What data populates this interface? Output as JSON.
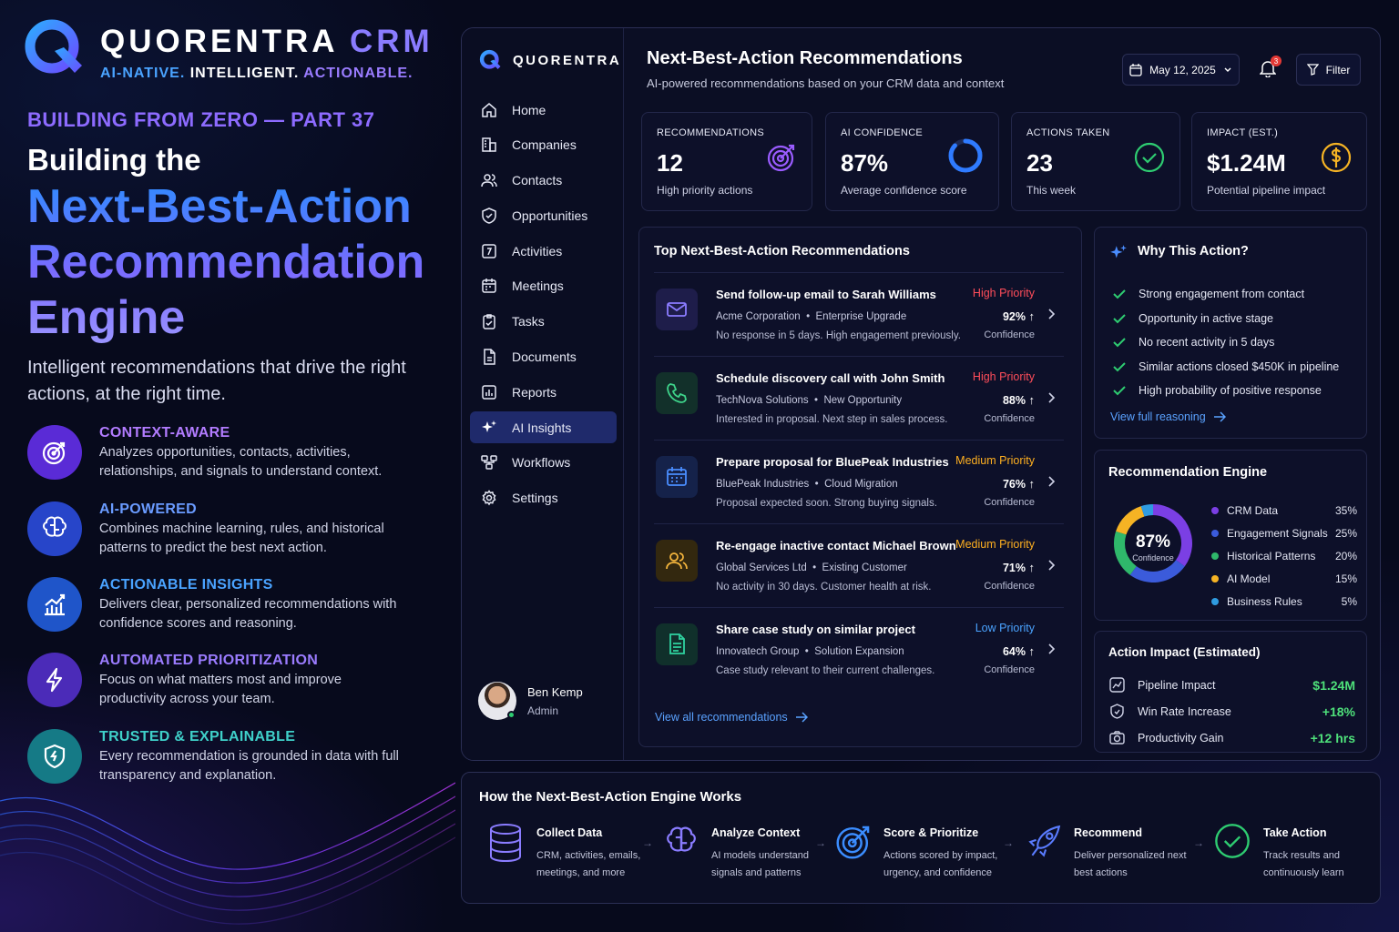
{
  "brand": {
    "name": "QUORENTRA",
    "product": "CRM",
    "tagline": [
      "AI-NATIVE.",
      "INTELLIGENT.",
      "ACTIONABLE."
    ]
  },
  "hero": {
    "series": "BUILDING FROM ZERO — PART 37",
    "title_lead": "Building the",
    "title_main": "Next-Best-Action Recommendation Engine",
    "lead": "Intelligent recommendations that drive the right actions, at the right time."
  },
  "features": [
    {
      "icon": "target-icon",
      "title": "CONTEXT-AWARE",
      "desc": "Analyzes opportunities, contacts, activities, relationships, and signals to understand context.",
      "color": "#a46bff"
    },
    {
      "icon": "brain-icon",
      "title": "AI-POWERED",
      "desc": "Combines machine learning, rules, and historical patterns to predict the best next action.",
      "color": "#5b8cff"
    },
    {
      "icon": "chart-growth-icon",
      "title": "ACTIONABLE INSIGHTS",
      "desc": "Delivers clear, personalized recommendations with confidence scores and reasoning.",
      "color": "#4aa3ff"
    },
    {
      "icon": "lightning-icon",
      "title": "AUTOMATED PRIORITIZATION",
      "desc": "Focus on what matters most and improve productivity across your team.",
      "color": "#8d6bff"
    },
    {
      "icon": "shield-icon",
      "title": "TRUSTED & EXPLAINABLE",
      "desc": "Every recommendation is grounded in data with full transparency and explanation.",
      "color": "#3fc3c9"
    }
  ],
  "sidebar": {
    "logo_text": "QUORENTRA",
    "items": [
      {
        "label": "Home",
        "icon": "home-icon"
      },
      {
        "label": "Companies",
        "icon": "building-icon"
      },
      {
        "label": "Contacts",
        "icon": "users-icon"
      },
      {
        "label": "Opportunities",
        "icon": "shield-check-icon"
      },
      {
        "label": "Activities",
        "icon": "activity-icon"
      },
      {
        "label": "Meetings",
        "icon": "calendar-icon"
      },
      {
        "label": "Tasks",
        "icon": "clipboard-icon"
      },
      {
        "label": "Documents",
        "icon": "document-icon"
      },
      {
        "label": "Reports",
        "icon": "report-icon"
      },
      {
        "label": "AI Insights",
        "icon": "sparkle-icon",
        "active": true
      },
      {
        "label": "Workflows",
        "icon": "workflow-icon"
      },
      {
        "label": "Settings",
        "icon": "gear-icon"
      }
    ],
    "user": {
      "name": "Ben Kemp",
      "role": "Admin"
    }
  },
  "header": {
    "title": "Next-Best-Action Recommendations",
    "subtitle": "AI-powered recommendations based on your CRM data and context",
    "date": "May 12, 2025",
    "notifications": "3",
    "filter_label": "Filter"
  },
  "kpis": [
    {
      "label": "RECOMMENDATIONS",
      "value": "12",
      "sub": "High priority actions",
      "icon": "target-icon"
    },
    {
      "label": "AI CONFIDENCE",
      "value": "87%",
      "sub": "Average confidence score",
      "icon": "progress-ring-icon",
      "progress": 0.87
    },
    {
      "label": "ACTIONS TAKEN",
      "value": "23",
      "sub": "This week",
      "icon": "check-circle-icon"
    },
    {
      "label": "IMPACT (EST.)",
      "value": "$1.24M",
      "sub": "Potential pipeline impact",
      "icon": "dollar-icon"
    }
  ],
  "recommendations": {
    "title": "Top Next-Best-Action Recommendations",
    "confidence_label": "Confidence",
    "items": [
      {
        "icon": "mail-icon",
        "title": "Send follow-up email to Sarah Williams",
        "company": "Acme Corporation",
        "deal": "Enterprise Upgrade",
        "note": "No response in 5 days. High engagement previously.",
        "priority": "High Priority",
        "priority_color": "#ff4d5a",
        "confidence": "92%",
        "icon_color": "#8b7cff",
        "icon_bg": "#1e1d4a"
      },
      {
        "icon": "phone-icon",
        "title": "Schedule discovery call with John Smith",
        "company": "TechNova Solutions",
        "deal": "New Opportunity",
        "note": "Interested in proposal. Next step in sales process.",
        "priority": "High Priority",
        "priority_color": "#ff4d5a",
        "confidence": "88%",
        "icon_color": "#3ed38a",
        "icon_bg": "#12302a"
      },
      {
        "icon": "calendar-icon",
        "title": "Prepare proposal for BluePeak Industries",
        "company": "BluePeak Industries",
        "deal": "Cloud Migration",
        "note": "Proposal expected soon. Strong buying signals.",
        "priority": "Medium Priority",
        "priority_color": "#ffb020",
        "confidence": "76%",
        "icon_color": "#4a8dff",
        "icon_bg": "#15224a"
      },
      {
        "icon": "users-icon",
        "title": "Re-engage inactive contact Michael Brown",
        "company": "Global Services Ltd",
        "deal": "Existing Customer",
        "note": "No activity in 30 days. Customer health at risk.",
        "priority": "Medium Priority",
        "priority_color": "#ffb020",
        "confidence": "71%",
        "icon_color": "#f3b43c",
        "icon_bg": "#33280f"
      },
      {
        "icon": "document-icon",
        "title": "Share case study on similar project",
        "company": "Innovatech Group",
        "deal": "Solution Expansion",
        "note": "Case study relevant to their current challenges.",
        "priority": "Low Priority",
        "priority_color": "#4aa3ff",
        "confidence": "64%",
        "icon_color": "#2fd3a0",
        "icon_bg": "#10302b"
      }
    ],
    "view_all": "View all recommendations"
  },
  "why": {
    "title": "Why This Action?",
    "reasons": [
      "Strong engagement from contact",
      "Opportunity in active stage",
      "No recent activity in 5 days",
      "Similar actions closed $450K in pipeline",
      "High probability of positive response"
    ],
    "link": "View full reasoning"
  },
  "engine": {
    "title": "Recommendation Engine",
    "center_value": "87%",
    "center_label": "Confidence",
    "chart_data": {
      "type": "pie",
      "categories": [
        "CRM Data",
        "Engagement Signals",
        "Historical Patterns",
        "AI Model",
        "Business Rules"
      ],
      "values": [
        35,
        25,
        20,
        15,
        5
      ],
      "colors": [
        "#7b3fe4",
        "#3b5bdb",
        "#2fb86b",
        "#f5b324",
        "#2f9be0"
      ],
      "labels": [
        "35%",
        "25%",
        "20%",
        "15%",
        "5%"
      ]
    }
  },
  "impact": {
    "title": "Action Impact (Estimated)",
    "items": [
      {
        "label": "Pipeline Impact",
        "value": "$1.24M",
        "icon": "pipeline-icon"
      },
      {
        "label": "Win Rate Increase",
        "value": "+18%",
        "icon": "shield-check-icon"
      },
      {
        "label": "Productivity Gain",
        "value": "+12 hrs",
        "icon": "camera-icon"
      }
    ]
  },
  "how": {
    "title": "How the Next-Best-Action Engine Works",
    "steps": [
      {
        "title": "Collect Data",
        "desc": "CRM, activities, emails, meetings, and more",
        "icon": "database-icon"
      },
      {
        "title": "Analyze Context",
        "desc": "AI models understand signals and patterns",
        "icon": "brain-icon"
      },
      {
        "title": "Score & Prioritize",
        "desc": "Actions scored by impact, urgency, and confidence",
        "icon": "target-icon"
      },
      {
        "title": "Recommend",
        "desc": "Deliver personalized next best actions",
        "icon": "rocket-icon"
      },
      {
        "title": "Take Action",
        "desc": "Track results and continuously learn",
        "icon": "check-circle-icon"
      }
    ]
  }
}
